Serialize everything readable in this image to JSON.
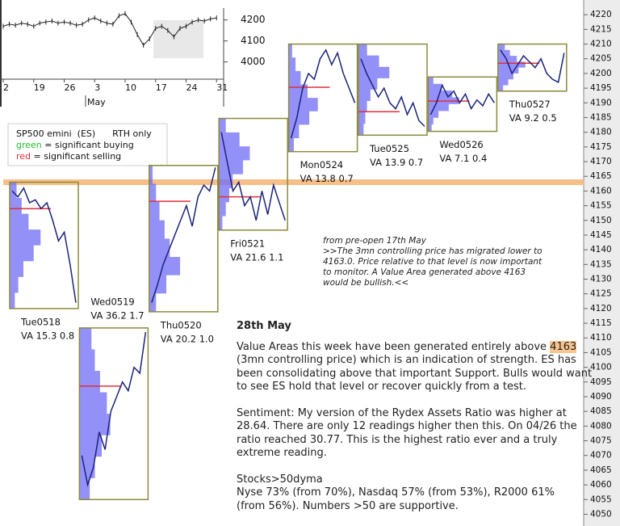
{
  "chart_data": [
    {
      "type": "market-profile",
      "ylim": [
        4046,
        4225
      ],
      "yticks": [
        4050,
        4055,
        4060,
        4065,
        4070,
        4075,
        4080,
        4085,
        4090,
        4095,
        4100,
        4105,
        4110,
        4115,
        4120,
        4125,
        4130,
        4135,
        4140,
        4145,
        4150,
        4155,
        4160,
        4165,
        4170,
        4175,
        4180,
        4185,
        4190,
        4195,
        4200,
        4205,
        4210,
        4215,
        4220
      ],
      "level": 4163,
      "level_color": "#f7bf88",
      "box_color": "#8c8a3c",
      "price_color": "#1b237a",
      "vpoc_color": "#e0303a",
      "profile_color": "#6f6cf5",
      "sessions": [
        {
          "name": "Tue0518",
          "va": "VA 15.3  0.8",
          "high": 4163,
          "low": 4120,
          "vpoc": 4154,
          "profile": [
            20,
            35,
            55,
            90,
            70,
            40,
            25,
            15
          ],
          "prices": [
            4160,
            4158,
            4161,
            4156,
            4157,
            4154,
            4156,
            4150,
            4143,
            4146,
            4135,
            4122
          ]
        },
        {
          "name": "Wed0519",
          "va": "VA 36.2  1.7",
          "high": 4113.4,
          "low": 4055,
          "vpoc": 4093.6,
          "profile": [
            35,
            45,
            60,
            80,
            90,
            65,
            45,
            30
          ],
          "prices": [
            4070,
            4060,
            4066,
            4078,
            4072,
            4085,
            4090,
            4095,
            4092,
            4100,
            4098,
            4112
          ]
        },
        {
          "name": "Thu0520",
          "va": "VA 20.2  1.0",
          "high": 4168.7,
          "low": 4118.9,
          "vpoc": 4156.5,
          "profile": [
            10,
            20,
            30,
            45,
            60,
            90,
            50,
            20
          ],
          "prices": [
            4122,
            4128,
            4135,
            4140,
            4145,
            4150,
            4155,
            4148,
            4158,
            4162,
            4160,
            4168
          ]
        },
        {
          "name": "Fri0521",
          "va": "VA 21.6  1.1",
          "high": 4184.7,
          "low": 4146.7,
          "vpoc": 4158,
          "profile": [
            20,
            60,
            90,
            70,
            40,
            30,
            20,
            10
          ],
          "prices": [
            4180,
            4170,
            4160,
            4163,
            4155,
            4158,
            4150,
            4160,
            4152,
            4162,
            4156,
            4150
          ]
        },
        {
          "name": "Mon0524",
          "va": "VA 13.8  0.7",
          "high": 4210,
          "low": 4173.4,
          "vpoc": 4195.3,
          "profile": [
            10,
            20,
            35,
            55,
            85,
            60,
            30,
            15
          ],
          "prices": [
            4178,
            4185,
            4195,
            4200,
            4198,
            4205,
            4208,
            4203,
            4207,
            4200,
            4195,
            4190
          ]
        },
        {
          "name": "Tue0525",
          "va": "VA 13.9  0.7",
          "high": 4210,
          "low": 4179,
          "vpoc": 4187,
          "profile": [
            25,
            60,
            90,
            55,
            35,
            25,
            20,
            15
          ],
          "prices": [
            4205,
            4200,
            4196,
            4192,
            4195,
            4190,
            4188,
            4192,
            4186,
            4190,
            4184,
            4182
          ]
        },
        {
          "name": "Wed0526",
          "va": "VA 7.1  0.4",
          "high": 4198.8,
          "low": 4180.3,
          "vpoc": 4190.6,
          "profile": [
            15,
            40,
            70,
            90,
            60,
            30,
            15,
            10
          ],
          "prices": [
            4186,
            4190,
            4196,
            4192,
            4194,
            4190,
            4193,
            4188,
            4191,
            4189,
            4193,
            4190
          ]
        },
        {
          "name": "Thu0527",
          "va": "VA 9.2  0.5",
          "high": 4210,
          "low": 4194,
          "vpoc": 4203.5,
          "profile": [
            20,
            35,
            55,
            80,
            60,
            45,
            30,
            15
          ],
          "prices": [
            4208,
            4205,
            4200,
            4203,
            4206,
            4204,
            4202,
            4205,
            4200,
            4198,
            4197,
            4207
          ]
        }
      ],
      "legend_title": "SP500 emini  (ES)      RTH only",
      "legend": [
        {
          "name": "green",
          "color": "#22c02a",
          "text": " = significant buying"
        },
        {
          "name": "red",
          "color": "#e0303a",
          "text": " = significant selling"
        }
      ],
      "note": [
        "from pre-open 17th May",
        ">>The 3mn controlling price has migrated lower to",
        "4163.0. Price relative to that level is now important",
        "to monitor. A Value Area generated above 4163",
        "would be bullish.<<"
      ]
    },
    {
      "type": "line",
      "color": "#222",
      "categories": [
        "2",
        null,
        null,
        null,
        null,
        "19",
        null,
        null,
        null,
        null,
        "26",
        null,
        null,
        null,
        null,
        "3",
        null,
        null,
        null,
        null,
        "10",
        null,
        null,
        null,
        null,
        "17",
        null,
        null,
        null,
        null,
        "24",
        null,
        null,
        null,
        null,
        "31"
      ],
      "values": [
        4170,
        4180,
        4175,
        4185,
        4180,
        4170,
        4185,
        4190,
        4195,
        4185,
        4190,
        4185,
        4175,
        4180,
        4200,
        4210,
        4195,
        4185,
        4180,
        4220,
        4230,
        4190,
        4130,
        4080,
        4110,
        4160,
        4170,
        4150,
        4120,
        4160,
        4170,
        4190,
        4200,
        4195,
        4205,
        4210
      ],
      "ylim": [
        3918,
        4295
      ],
      "yticks": [
        4000,
        4100,
        4200
      ],
      "x_label": "May"
    }
  ],
  "commentary": {
    "title": "28th May",
    "highlight": "4163",
    "paragraphs": [
      [
        "Value Areas this week have been generated entirely above ",
        "(3mn controlling price) which is an indication of strength. ES has",
        "been consolidating above that important Support. Bulls would want",
        "to see ES hold that level or recover quickly from a test."
      ],
      [
        "Sentiment: My version of the Rydex Assets Ratio was higher at",
        "28.64. There are only 12 readings higher then this. On 04/26 the",
        "ratio reached 30.77. This is the highest ratio ever and a truly",
        "extreme reading."
      ],
      [
        "Stocks>50dyma",
        "Nyse 73% (from 70%), Nasdaq 57% (from 53%), R2000 61%",
        "(from 56%). Numbers >50 are supportive."
      ]
    ]
  }
}
